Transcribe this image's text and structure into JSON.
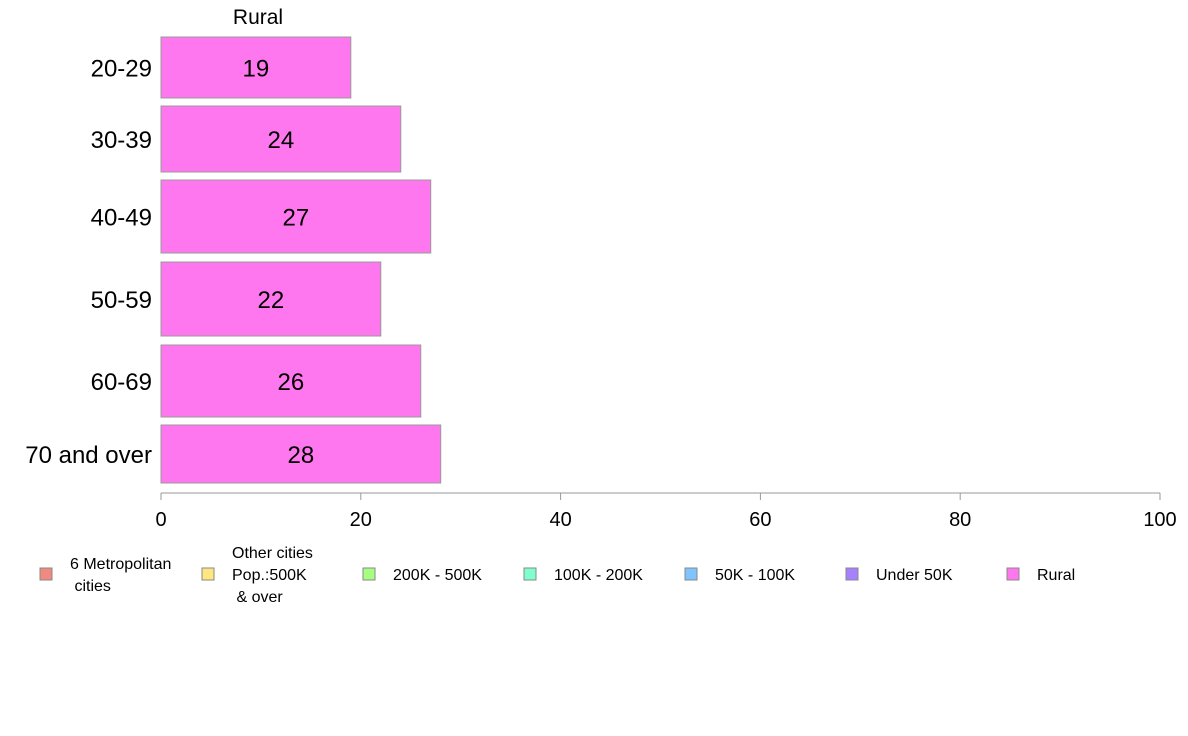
{
  "chart_data": {
    "type": "bar",
    "orientation": "horizontal",
    "title": "Rural",
    "categories": [
      "20-29",
      "30-39",
      "40-49",
      "50-59",
      "60-69",
      "70 and over"
    ],
    "values": [
      19,
      24,
      27,
      22,
      26,
      28
    ],
    "value_labels": [
      "19",
      "24",
      "27",
      "22",
      "26",
      "28"
    ],
    "xlim": [
      0,
      100
    ],
    "x_ticks": [
      0,
      20,
      40,
      60,
      80,
      100
    ],
    "x_tick_labels": [
      "0",
      "20",
      "40",
      "60",
      "80",
      "100"
    ],
    "xlabel": "",
    "ylabel": "",
    "grid": false,
    "bar_color": "#ff77ee",
    "legend_placement": "bottom",
    "legend": [
      {
        "lines": [
          "6 Metropolitan",
          " cities"
        ],
        "color": "#f08a80"
      },
      {
        "lines": [
          "Other cities",
          "Pop.:500K",
          " & over"
        ],
        "color": "#ffe680"
      },
      {
        "lines": [
          "200K - 500K"
        ],
        "color": "#a6ff80"
      },
      {
        "lines": [
          "100K - 200K"
        ],
        "color": "#80ffcc"
      },
      {
        "lines": [
          "50K - 100K"
        ],
        "color": "#80c4ff"
      },
      {
        "lines": [
          "Under 50K"
        ],
        "color": "#a680ff"
      },
      {
        "lines": [
          "Rural"
        ],
        "color": "#ff77ee"
      }
    ]
  }
}
